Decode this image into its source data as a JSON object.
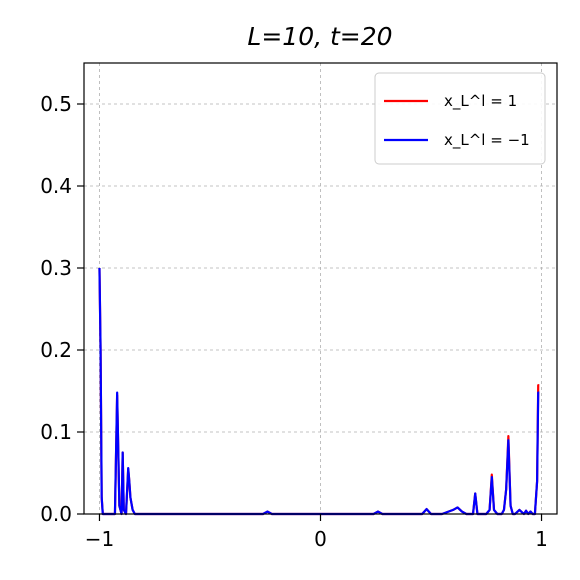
{
  "chart_data": {
    "type": "line",
    "title": "L=10, t=20",
    "xlabel": "",
    "ylabel": "",
    "xlim": [
      -1.07,
      1.07
    ],
    "ylim": [
      0,
      0.55
    ],
    "xticks": [
      -1,
      0,
      1
    ],
    "xtick_labels": [
      "−1",
      "0",
      "1"
    ],
    "yticks": [
      0.0,
      0.1,
      0.2,
      0.3,
      0.4,
      0.5
    ],
    "ytick_labels": [
      "0.0",
      "0.1",
      "0.2",
      "0.3",
      "0.4",
      "0.5"
    ],
    "grid": true,
    "legend_position": "top-right",
    "series": [
      {
        "name": "x_L^l = 1",
        "color": "#ff0000",
        "x": [
          -1.0,
          -0.995,
          -0.99,
          -0.985,
          -0.97,
          -0.94,
          -0.93,
          -0.92,
          -0.91,
          -0.9,
          -0.895,
          -0.89,
          -0.88,
          -0.87,
          -0.865,
          -0.86,
          -0.85,
          -0.84,
          -0.82,
          -0.7,
          -0.5,
          -0.3,
          -0.26,
          -0.24,
          -0.22,
          -0.1,
          0.1,
          0.2,
          0.24,
          0.26,
          0.28,
          0.4,
          0.46,
          0.48,
          0.5,
          0.55,
          0.6,
          0.62,
          0.64,
          0.66,
          0.68,
          0.69,
          0.7,
          0.71,
          0.72,
          0.75,
          0.765,
          0.775,
          0.785,
          0.8,
          0.82,
          0.83,
          0.84,
          0.85,
          0.86,
          0.87,
          0.88,
          0.9,
          0.92,
          0.93,
          0.94,
          0.95,
          0.96,
          0.97,
          0.98,
          0.985,
          0.99
        ],
        "y": [
          0.3,
          0.2,
          0.02,
          0.0,
          0.0,
          0.0,
          0.0,
          0.145,
          0.01,
          0.0,
          0.075,
          0.005,
          0.0,
          0.055,
          0.04,
          0.02,
          0.005,
          0.0,
          0.0,
          0.0,
          0.0,
          0.0,
          0.0,
          0.003,
          0.0,
          0.0,
          0.0,
          0.0,
          0.0,
          0.003,
          0.0,
          0.0,
          0.0,
          0.006,
          0.0,
          0.0,
          0.005,
          0.008,
          0.003,
          0.0,
          0.0,
          0.0,
          0.025,
          0.0,
          0.0,
          0.0,
          0.005,
          0.048,
          0.005,
          0.0,
          0.0,
          0.005,
          0.03,
          0.095,
          0.01,
          0.0,
          0.0,
          0.005,
          0.0,
          0.004,
          0.0,
          0.003,
          0.0,
          0.0,
          0.04,
          0.157,
          0.157
        ]
      },
      {
        "name": "x_L^l = −1",
        "color": "#0000ff",
        "x": [
          -1.0,
          -0.995,
          -0.99,
          -0.985,
          -0.97,
          -0.94,
          -0.93,
          -0.92,
          -0.91,
          -0.9,
          -0.895,
          -0.89,
          -0.88,
          -0.87,
          -0.865,
          -0.86,
          -0.85,
          -0.84,
          -0.82,
          -0.7,
          -0.5,
          -0.3,
          -0.26,
          -0.24,
          -0.22,
          -0.1,
          0.1,
          0.2,
          0.24,
          0.26,
          0.28,
          0.4,
          0.46,
          0.48,
          0.5,
          0.55,
          0.6,
          0.62,
          0.64,
          0.66,
          0.68,
          0.69,
          0.7,
          0.71,
          0.72,
          0.75,
          0.765,
          0.775,
          0.785,
          0.8,
          0.82,
          0.83,
          0.84,
          0.85,
          0.86,
          0.87,
          0.88,
          0.9,
          0.92,
          0.93,
          0.94,
          0.95,
          0.96,
          0.97,
          0.98,
          0.985,
          0.99
        ],
        "y": [
          0.3,
          0.2,
          0.02,
          0.0,
          0.0,
          0.0,
          0.0,
          0.148,
          0.01,
          0.0,
          0.075,
          0.005,
          0.0,
          0.056,
          0.04,
          0.02,
          0.005,
          0.0,
          0.0,
          0.0,
          0.0,
          0.0,
          0.0,
          0.003,
          0.0,
          0.0,
          0.0,
          0.0,
          0.0,
          0.003,
          0.0,
          0.0,
          0.0,
          0.006,
          0.0,
          0.0,
          0.005,
          0.008,
          0.003,
          0.0,
          0.0,
          0.0,
          0.025,
          0.0,
          0.0,
          0.0,
          0.005,
          0.045,
          0.005,
          0.0,
          0.0,
          0.005,
          0.03,
          0.09,
          0.01,
          0.0,
          0.0,
          0.005,
          0.0,
          0.004,
          0.0,
          0.003,
          0.0,
          0.0,
          0.04,
          0.148,
          0.148
        ]
      }
    ]
  }
}
